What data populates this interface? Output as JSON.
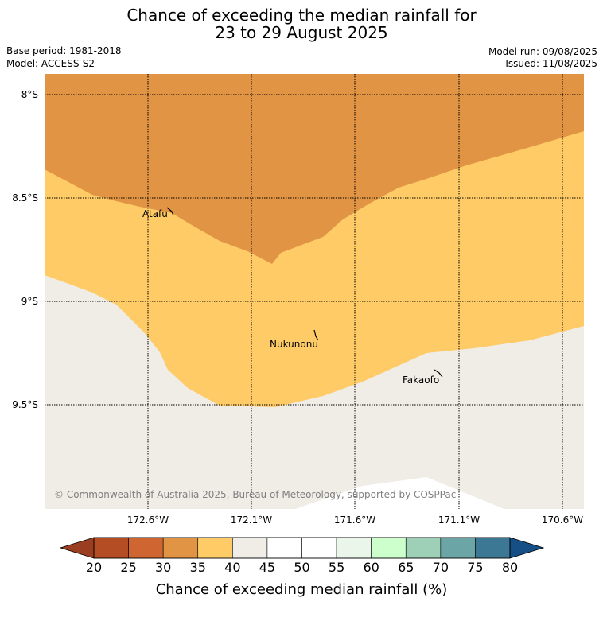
{
  "title": {
    "line1": "Chance of exceeding the median rainfall for",
    "line2": "23 to 29 August 2025"
  },
  "meta": {
    "base_period": "Base period: 1981-2018",
    "model": "Model: ACCESS-S2",
    "model_run": "Model run: 09/08/2025",
    "issued": "Issued: 11/08/2025"
  },
  "map": {
    "latitude_labels": [
      "8°S",
      "8.5°S",
      "9°S",
      "9.5°S"
    ],
    "longitude_labels": [
      "172.6°W",
      "172.1°W",
      "171.6°W",
      "171.1°W",
      "170.6°W"
    ],
    "places": [
      "Atafu",
      "Nukunonu",
      "Fakaofo"
    ],
    "copyright": "© Commonwealth of Australia 2025, Bureau of Meteorology, supported by COSPPac",
    "colors": {
      "band_30_35": "#e09444",
      "band_35_40": "#fecb66",
      "band_40_45": "#f0ece6",
      "band_45_50": "#ffffff"
    }
  },
  "colorbar": {
    "label": "Chance of exceeding median rainfall (%)",
    "ticks": [
      "20",
      "25",
      "30",
      "35",
      "40",
      "45",
      "50",
      "55",
      "60",
      "65",
      "70",
      "75",
      "80"
    ],
    "low_color": "#9b3d20",
    "high_color": "#154f85",
    "colors": [
      "#b44c24",
      "#cf6531",
      "#e09444",
      "#fecb66",
      "#f0ece6",
      "#ffffff",
      "#ffffff",
      "#ebf6eb",
      "#ccffcc",
      "#9dd0b7",
      "#6ba5a5",
      "#3c7894"
    ]
  }
}
